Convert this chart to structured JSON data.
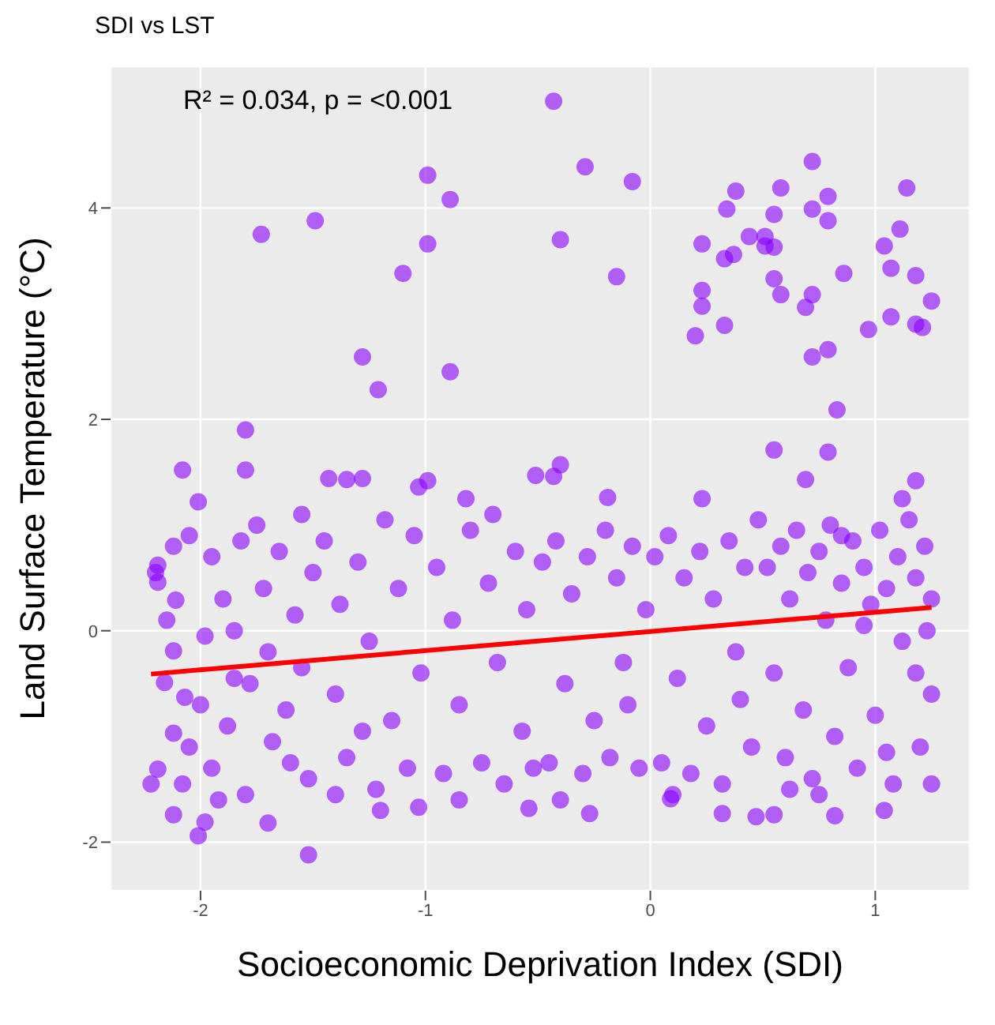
{
  "chart_data": {
    "type": "scatter",
    "title": "SDI vs LST",
    "xlabel": "Socioeconomic Deprivation Index (SDI)",
    "ylabel": "Land Surface Temperature (°C)",
    "annotations": [
      "R² = 0.034, p = <0.001"
    ],
    "xlim": [
      -2.4,
      1.42
    ],
    "xticks": [
      -2,
      -1,
      0,
      1
    ],
    "ylim": [
      -2.46,
      5.34
    ],
    "yticks": [
      -2,
      0,
      2,
      4
    ],
    "grid": true,
    "marker": "circle",
    "series": [
      {
        "color": "#8a00ff",
        "x": [
          -0.43,
          -1.73,
          -1.49,
          -0.99,
          -0.89,
          -0.99,
          -1.1,
          -1.28,
          -1.21,
          -0.89,
          -1.8,
          -0.29,
          -0.08,
          -0.4,
          -0.15,
          0.2,
          0.23,
          0.23,
          0.23,
          0.33,
          0.33,
          0.37,
          0.34,
          0.38,
          0.44,
          0.51,
          0.51,
          0.55,
          0.55,
          0.58,
          0.55,
          0.58,
          0.69,
          0.72,
          0.72,
          0.72,
          0.79,
          0.79,
          0.86,
          0.72,
          0.79,
          0.83,
          0.97,
          1.04,
          1.07,
          1.11,
          1.14,
          1.18,
          1.07,
          1.18,
          1.21,
          1.25,
          0.55,
          0.79,
          -2.08,
          -1.8,
          -2.01,
          -1.52,
          -1.98,
          -1.7,
          -2.22,
          -2.12,
          0.47,
          0.55,
          0.82,
          1.04,
          1.25,
          -1.03,
          -1.2,
          -0.54,
          -0.27,
          0.09,
          0.32,
          -0.4,
          -0.51,
          -0.43,
          -1.43,
          -1.35,
          -1.28,
          -1.03,
          -0.99,
          1.18,
          0.69,
          0.23,
          -0.19,
          -0.82,
          -2.01,
          -2.12,
          -2.19,
          -2.19,
          -2.11,
          -2.12,
          -2.16,
          -2.07,
          -2.12,
          -2.19,
          -2.2,
          -2.15,
          -2.05,
          -1.98,
          -1.95,
          -1.9,
          -1.85,
          -1.82,
          -2.05,
          -1.95,
          -1.88,
          -1.8,
          -2.08,
          -1.92,
          -2,
          -1.85,
          -1.75,
          -1.72,
          -1.7,
          -1.65,
          -1.62,
          -1.6,
          -1.58,
          -1.55,
          -1.52,
          -1.5,
          -1.68,
          -1.78,
          -1.55,
          -1.45,
          -1.4,
          -1.38,
          -1.35,
          -1.3,
          -1.25,
          -1.22,
          -1.18,
          -1.15,
          -1.12,
          -1.08,
          -1.05,
          -1.02,
          -1.4,
          -1.28,
          -0.95,
          -0.92,
          -0.88,
          -0.85,
          -0.8,
          -0.75,
          -0.72,
          -0.68,
          -0.65,
          -0.6,
          -0.57,
          -0.55,
          -0.52,
          -0.7,
          -0.85,
          -0.48,
          -0.45,
          -0.42,
          -0.38,
          -0.35,
          -0.3,
          -0.28,
          -0.25,
          -0.2,
          -0.18,
          -0.15,
          -0.12,
          -0.08,
          -0.05,
          -0.02,
          -0.4,
          -0.1,
          0.02,
          0.05,
          0.08,
          0.12,
          0.15,
          0.18,
          0.22,
          0.25,
          0.28,
          0.32,
          0.35,
          0.38,
          0.42,
          0.45,
          0.48,
          0.1,
          0.4,
          0.52,
          0.55,
          0.58,
          0.6,
          0.62,
          0.65,
          0.68,
          0.7,
          0.72,
          0.75,
          0.78,
          0.8,
          0.82,
          0.85,
          0.88,
          0.9,
          0.92,
          0.95,
          0.98,
          1,
          1.02,
          1.05,
          1.08,
          1.1,
          1.12,
          1.15,
          1.18,
          1.2,
          1.22,
          1.25,
          1.25,
          1.23,
          1.18,
          1.05,
          0.95,
          0.85,
          0.75,
          1.12,
          0.62
        ],
        "values": [
          5.01,
          3.75,
          3.88,
          4.31,
          4.08,
          3.66,
          3.38,
          2.59,
          2.28,
          2.45,
          1.9,
          4.39,
          4.25,
          3.7,
          3.35,
          2.79,
          3.22,
          3.07,
          3.66,
          2.89,
          3.52,
          3.56,
          3.99,
          4.16,
          3.73,
          3.73,
          3.64,
          3.63,
          3.94,
          4.19,
          3.33,
          3.18,
          3.06,
          3.18,
          3.99,
          4.44,
          4.11,
          3.88,
          3.38,
          2.59,
          2.66,
          2.09,
          2.85,
          3.64,
          3.43,
          3.8,
          4.19,
          3.36,
          2.97,
          2.9,
          2.87,
          3.12,
          1.71,
          1.69,
          1.52,
          1.52,
          -1.94,
          -2.12,
          -1.81,
          -1.82,
          -1.45,
          -1.74,
          -1.76,
          -1.74,
          -1.75,
          -1.7,
          -1.45,
          -1.67,
          -1.7,
          -1.68,
          -1.73,
          -1.59,
          -1.73,
          1.57,
          1.47,
          1.46,
          1.44,
          1.43,
          1.44,
          1.36,
          1.42,
          1.42,
          1.43,
          1.25,
          1.26,
          1.25,
          1.22,
          0.8,
          0.62,
          0.46,
          0.29,
          -0.19,
          -0.49,
          -0.63,
          -0.97,
          -1.31,
          0.55,
          0.1,
          0.9,
          -0.05,
          0.7,
          0.3,
          -0.45,
          0.85,
          -1.1,
          -1.3,
          -0.9,
          -1.55,
          -1.45,
          -1.6,
          -0.7,
          0,
          1,
          0.4,
          -0.2,
          0.75,
          -0.75,
          -1.25,
          0.15,
          1.1,
          -1.4,
          0.55,
          -1.05,
          -0.5,
          -0.35,
          0.85,
          -0.6,
          0.25,
          -1.2,
          0.65,
          -0.1,
          -1.5,
          1.05,
          -0.85,
          0.4,
          -1.3,
          0.9,
          -0.4,
          -1.55,
          -0.95,
          0.6,
          -1.35,
          0.1,
          -0.7,
          0.95,
          -1.25,
          0.45,
          -0.3,
          -1.45,
          0.75,
          -0.95,
          0.2,
          -1.3,
          1.1,
          -1.6,
          0.65,
          -1.25,
          0.85,
          -0.5,
          0.35,
          -1.35,
          0.7,
          -0.85,
          0.95,
          -1.2,
          0.5,
          -0.3,
          0.8,
          -1.3,
          0.2,
          -1.6,
          -0.7,
          0.7,
          -1.25,
          0.9,
          -0.45,
          0.5,
          -1.35,
          0.75,
          -0.9,
          0.3,
          -1.45,
          0.85,
          -0.2,
          0.6,
          -1.1,
          1.05,
          -1.55,
          -0.65,
          0.6,
          -0.4,
          0.8,
          -1.2,
          0.3,
          0.95,
          -0.75,
          0.55,
          -1.4,
          0.75,
          0.1,
          1,
          -1,
          0.45,
          -0.35,
          0.85,
          -1.3,
          0.6,
          0.25,
          -0.8,
          0.95,
          0.4,
          -1.45,
          0.7,
          -0.1,
          1.05,
          0.5,
          -1.1,
          0.8,
          0.3,
          -0.6,
          0,
          -0.4,
          -1.15,
          0.05,
          0.9,
          -1.55,
          1.25,
          -1.5
        ]
      },
      {
        "type": "line",
        "marker": "none",
        "color": "#ff0000",
        "x": [
          -2.22,
          1.25
        ],
        "values": [
          -0.41,
          0.22
        ]
      }
    ]
  }
}
